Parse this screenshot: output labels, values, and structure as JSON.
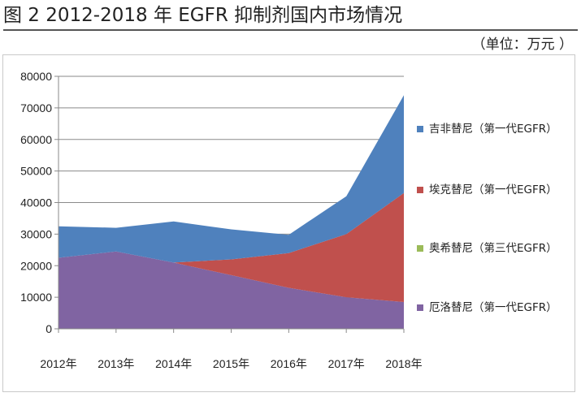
{
  "header": {
    "title": "图 2    2012-2018 年 EGFR 抑制剂国内市场情况",
    "unit": "（单位：万元  ）"
  },
  "chart_data": {
    "type": "area",
    "stacked": true,
    "categories": [
      "2012年",
      "2013年",
      "2014年",
      "2015年",
      "2016年",
      "2017年",
      "2018年"
    ],
    "ylim": [
      0,
      80000
    ],
    "yticks": [
      0,
      10000,
      20000,
      30000,
      40000,
      50000,
      60000,
      70000,
      80000
    ],
    "grid": true,
    "legend_position": "right",
    "series": [
      {
        "name": "厄洛替尼（第一代EGFR）",
        "color": "#8064a2",
        "values": [
          22500,
          24500,
          21000,
          17000,
          13000,
          10000,
          8500
        ]
      },
      {
        "name": "奥希替尼（第三代EGFR）",
        "color": "#9bbb59",
        "values": [
          0,
          0,
          0,
          0,
          0,
          0,
          0
        ]
      },
      {
        "name": "埃克替尼（第一代EGFR）",
        "color": "#c0504d",
        "values": [
          0,
          0,
          0,
          5000,
          11000,
          20000,
          34500
        ]
      },
      {
        "name": "吉非替尼（第一代EGFR）",
        "color": "#4f81bd",
        "values": [
          10000,
          7500,
          13000,
          9500,
          5800,
          12000,
          31000
        ]
      }
    ],
    "legend_order": [
      3,
      2,
      1,
      0
    ]
  }
}
